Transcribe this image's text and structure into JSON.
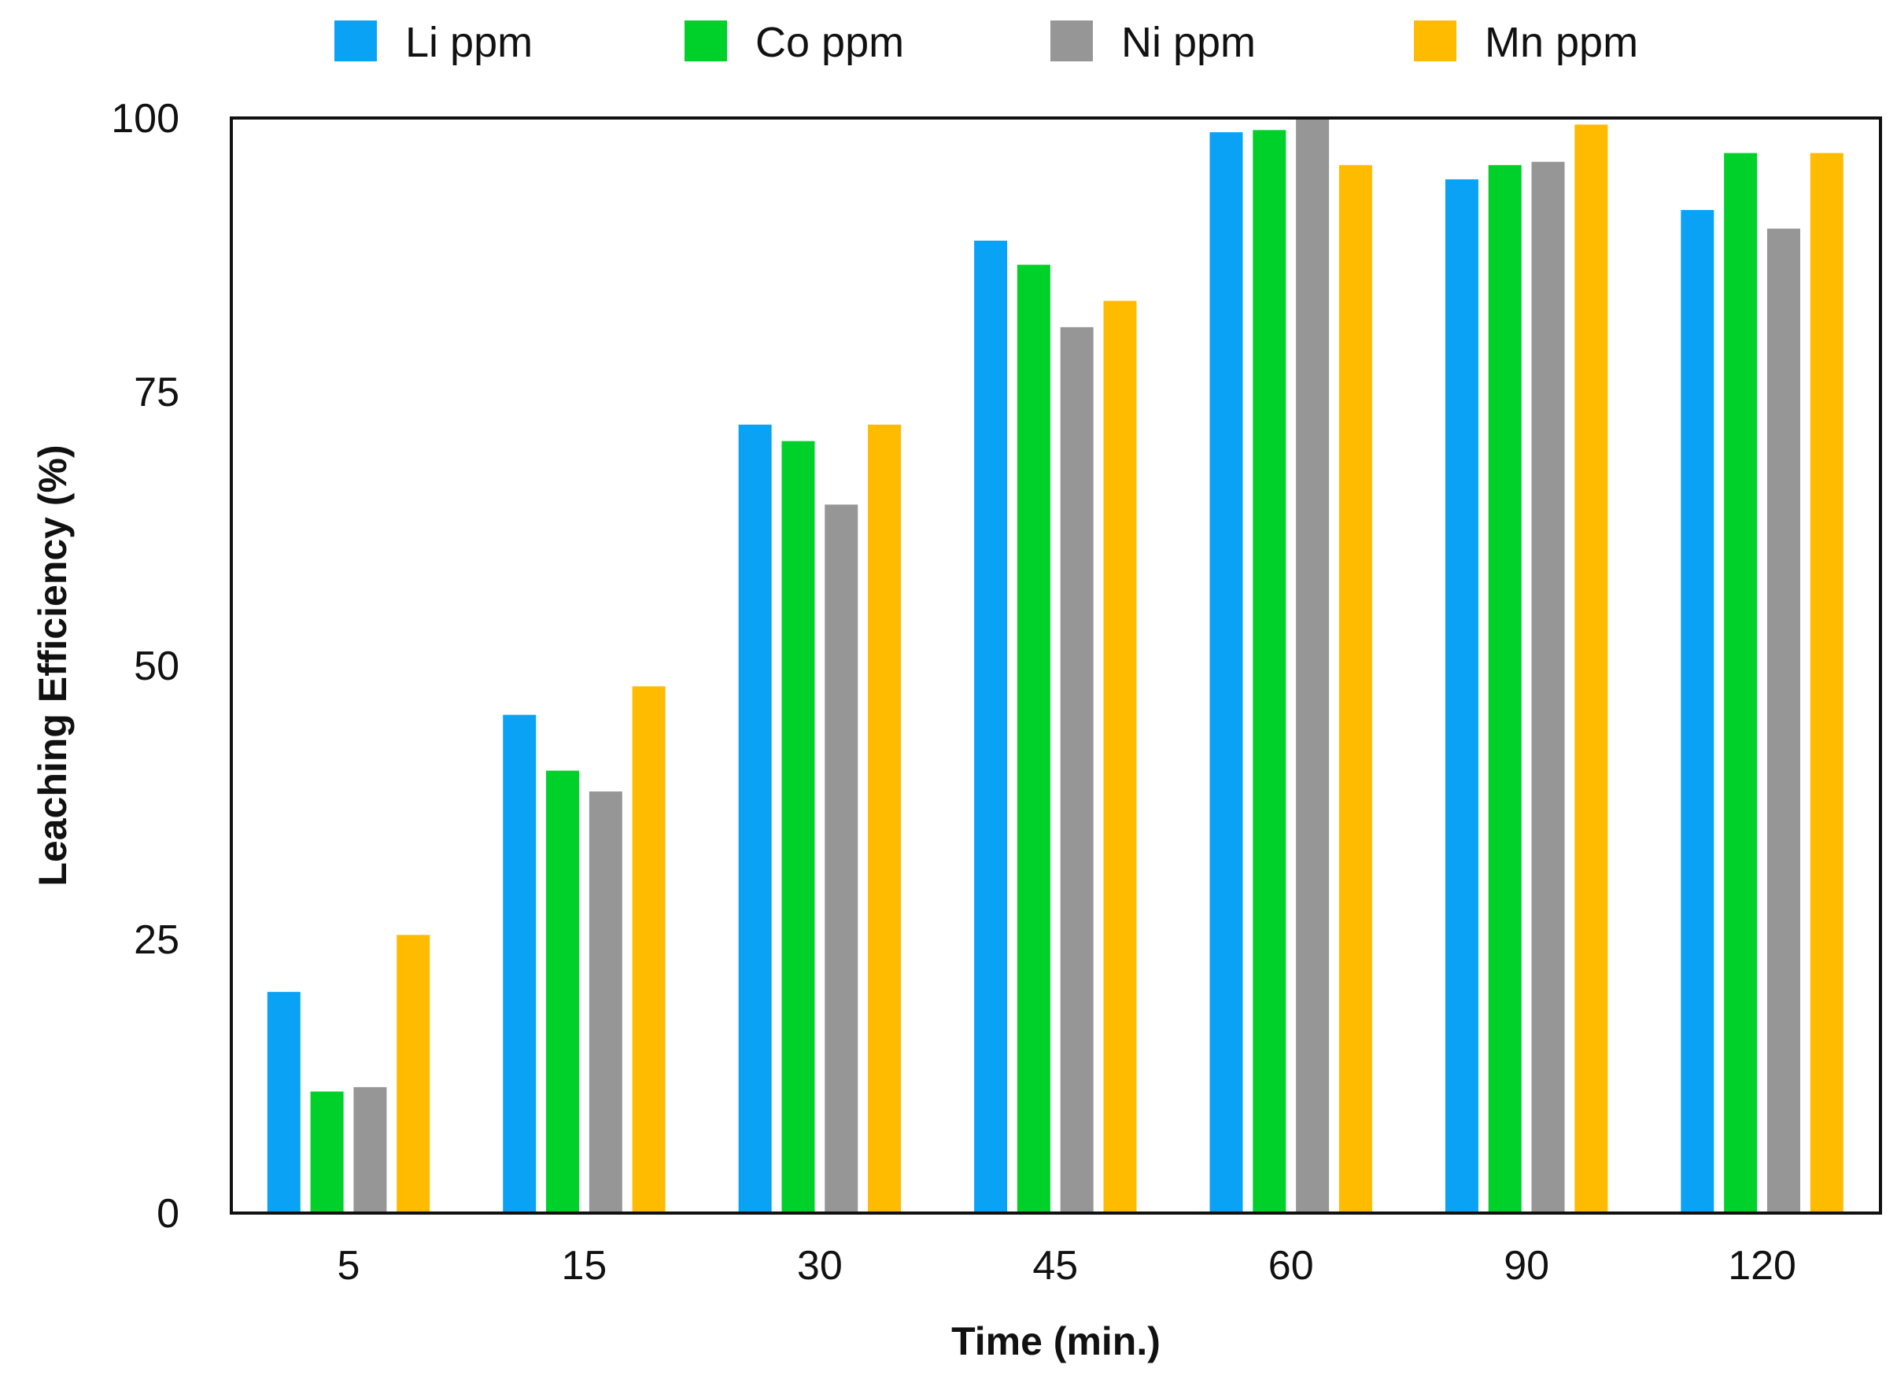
{
  "chart_data": {
    "type": "bar",
    "title": "",
    "xlabel": "Time (min.)",
    "ylabel": "Leaching Efficiency (%)",
    "ylim": [
      0,
      100
    ],
    "yticks": [
      0,
      25,
      50,
      75,
      100
    ],
    "grid": false,
    "legend_position": "top",
    "categories": [
      "5",
      "15",
      "30",
      "45",
      "60",
      "90",
      "120"
    ],
    "series": [
      {
        "name": "Li ppm",
        "color": "#0aa2f5",
        "values": [
          20.2,
          45.5,
          72.0,
          88.8,
          98.7,
          94.4,
          91.6
        ]
      },
      {
        "name": "Co ppm",
        "color": "#00d02a",
        "values": [
          11.1,
          40.4,
          70.5,
          86.6,
          98.9,
          95.7,
          96.8
        ]
      },
      {
        "name": "Ni ppm",
        "color": "#969696",
        "values": [
          11.5,
          38.5,
          64.7,
          80.9,
          100.0,
          96.0,
          89.9
        ]
      },
      {
        "name": "Mn ppm",
        "color": "#ffbb00",
        "values": [
          25.4,
          48.1,
          72.0,
          83.3,
          95.7,
          99.4,
          96.8
        ]
      }
    ]
  }
}
